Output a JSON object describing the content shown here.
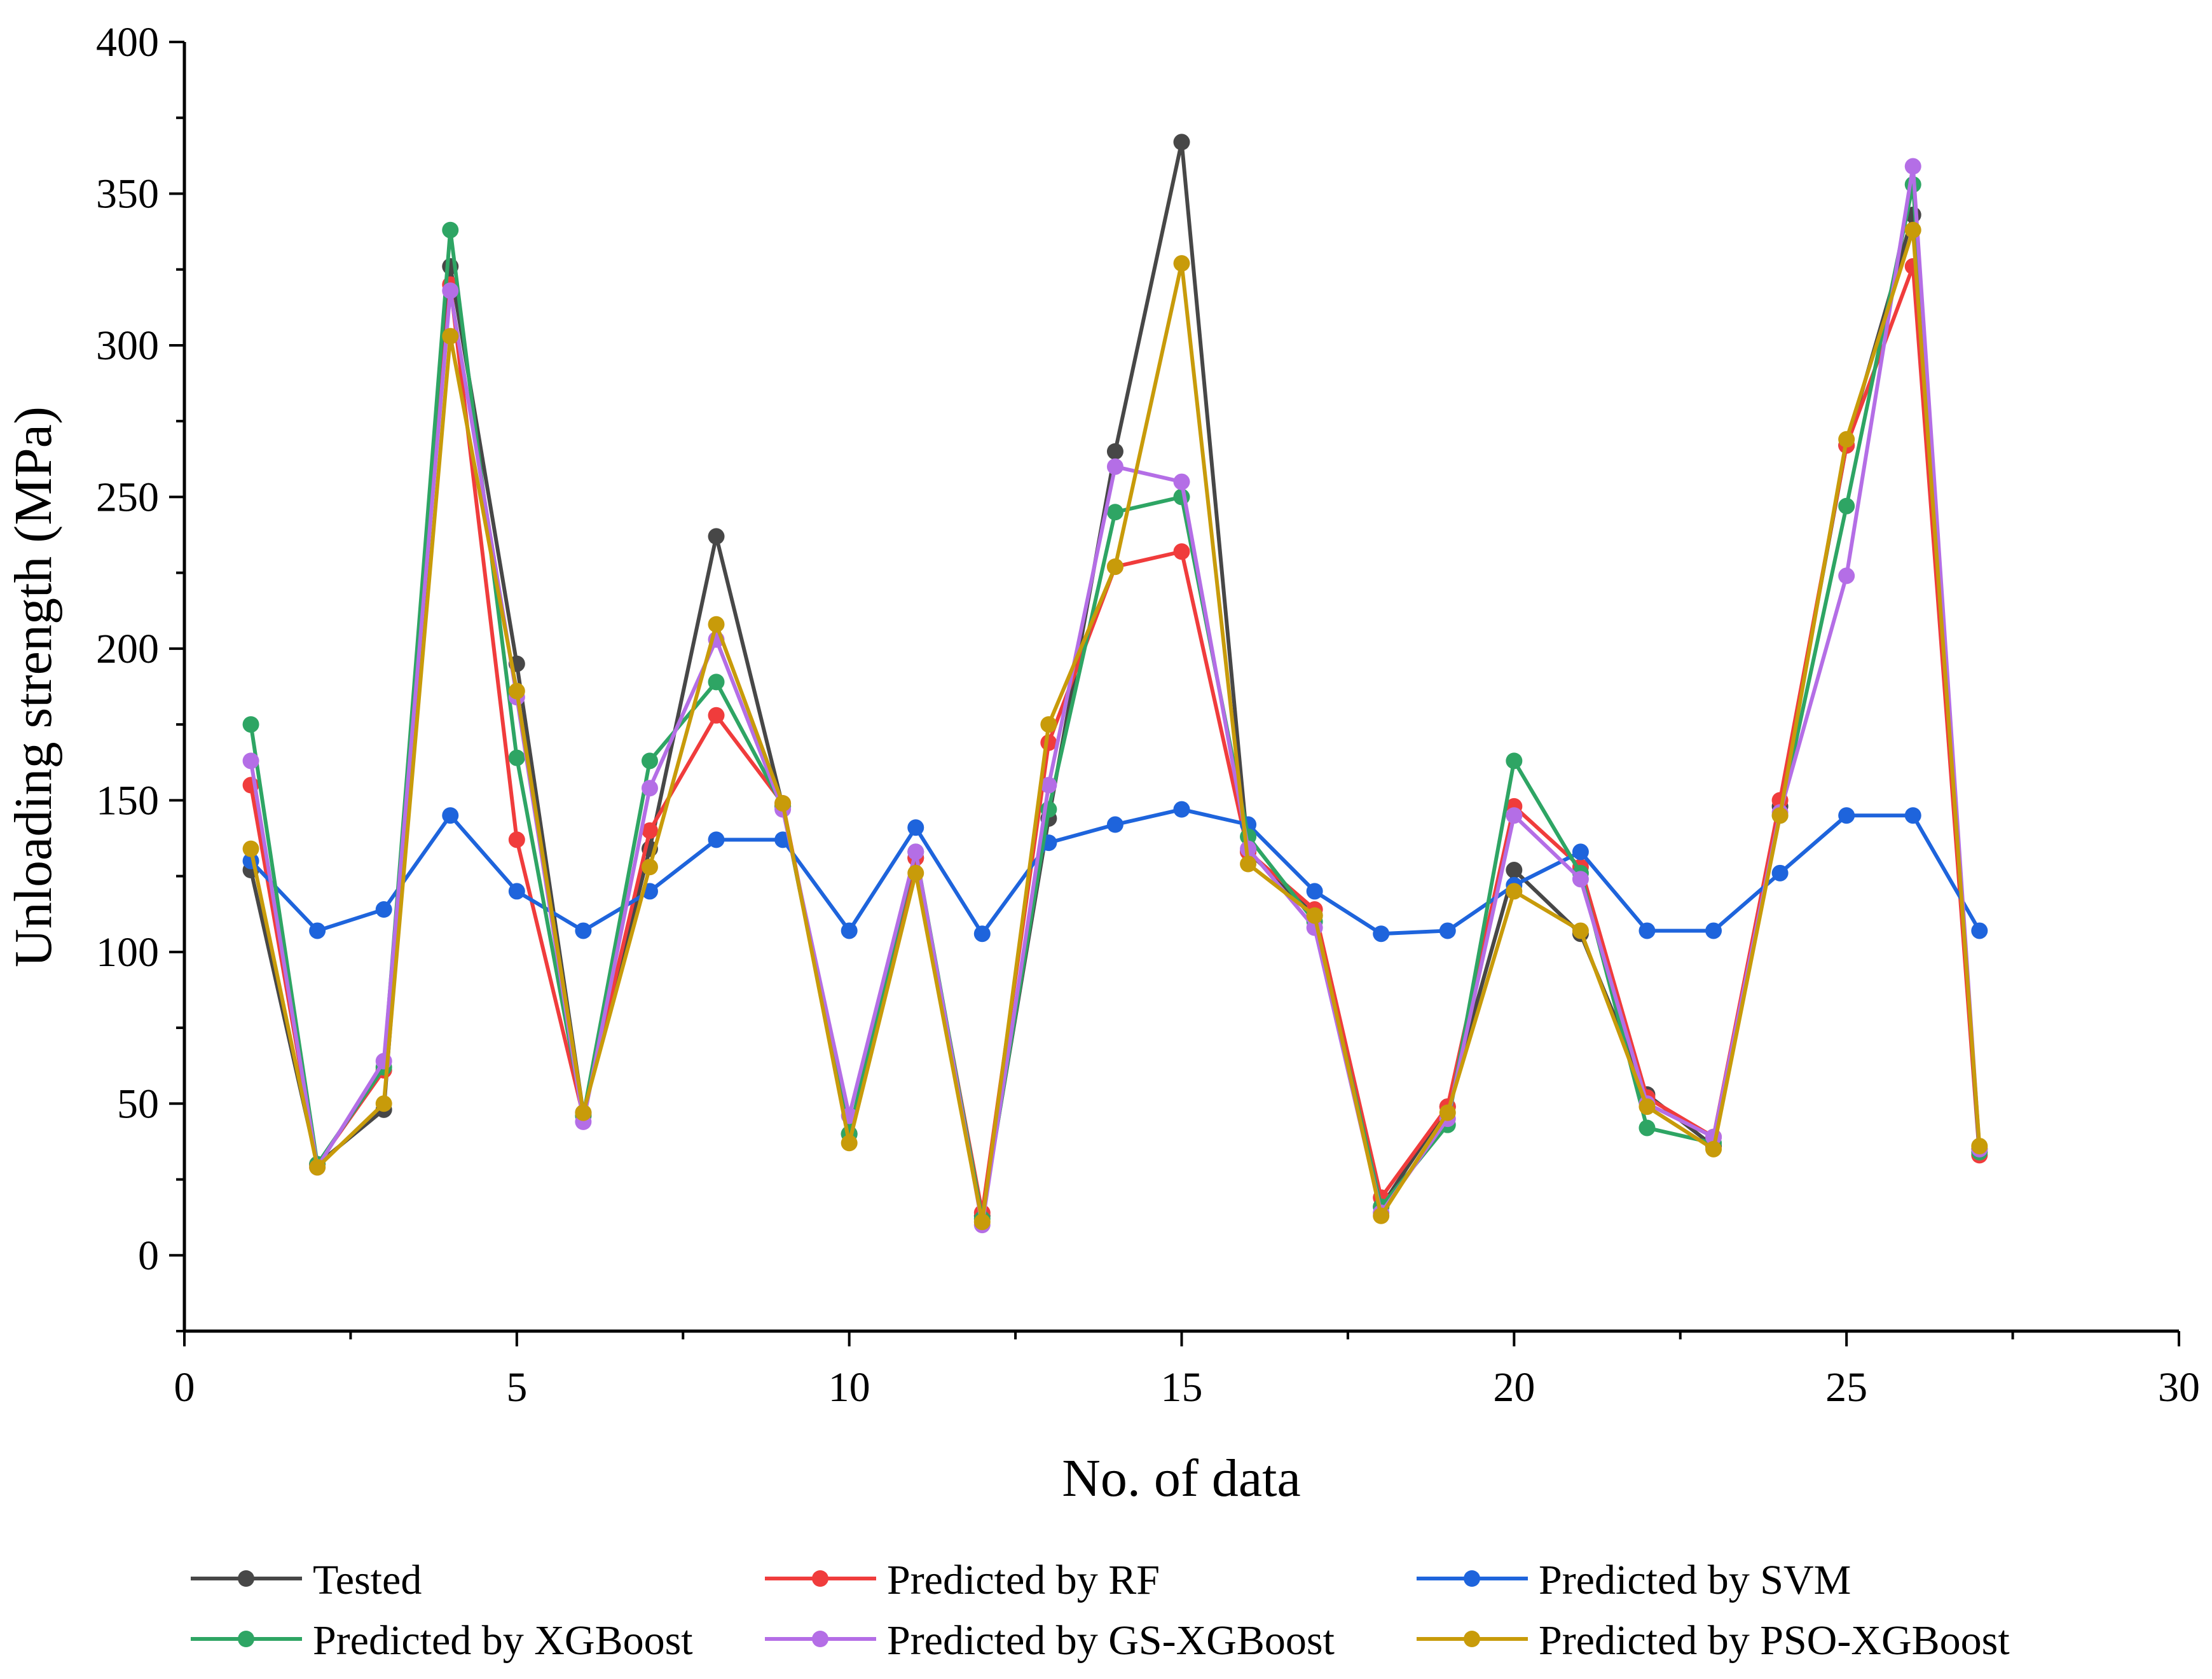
{
  "chart_data": {
    "type": "line",
    "title": "",
    "xlabel": "No. of data",
    "ylabel": "Unloading strength (MPa)",
    "xlim": [
      0,
      30
    ],
    "ylim": [
      -25,
      400
    ],
    "x_ticks": [
      0,
      5,
      10,
      15,
      20,
      25,
      30
    ],
    "y_ticks": [
      0,
      50,
      100,
      150,
      200,
      250,
      300,
      350,
      400
    ],
    "x_tick_labels": [
      "0",
      "5",
      "10",
      "15",
      "20",
      "25",
      "30"
    ],
    "y_tick_labels": [
      "0",
      "50",
      "100",
      "150",
      "200",
      "250",
      "300",
      "350",
      "400"
    ],
    "grid": false,
    "legend_position": "bottom",
    "x": [
      1,
      2,
      3,
      4,
      5,
      6,
      7,
      8,
      9,
      10,
      11,
      12,
      13,
      14,
      15,
      16,
      17,
      18,
      19,
      20,
      21,
      22,
      23,
      24,
      25,
      26,
      27
    ],
    "series": [
      {
        "name": "Tested",
        "color": "#474747",
        "values": [
          127,
          30,
          48,
          326,
          195,
          47,
          134,
          237,
          148,
          40,
          131,
          13,
          144,
          265,
          367,
          133,
          112,
          16,
          49,
          127,
          106,
          53,
          36,
          148,
          267,
          343,
          35
        ]
      },
      {
        "name": "Predicted by RF",
        "color": "#f03c3c",
        "values": [
          155,
          30,
          61,
          320,
          137,
          46,
          140,
          178,
          149,
          40,
          131,
          14,
          169,
          227,
          232,
          133,
          114,
          19,
          49,
          148,
          128,
          52,
          39,
          150,
          267,
          326,
          33
        ]
      },
      {
        "name": "Predicted by SVM",
        "color": "#1e64dc",
        "values": [
          130,
          107,
          114,
          145,
          120,
          107,
          120,
          137,
          137,
          107,
          141,
          106,
          136,
          142,
          147,
          142,
          120,
          106,
          107,
          122,
          133,
          107,
          107,
          126,
          145,
          145,
          107
        ]
      },
      {
        "name": "Predicted by XGBoost",
        "color": "#2ea564",
        "values": [
          175,
          30,
          62,
          338,
          164,
          46,
          163,
          189,
          148,
          40,
          133,
          12,
          147,
          245,
          250,
          138,
          110,
          16,
          43,
          163,
          126,
          42,
          37,
          145,
          247,
          353,
          34
        ]
      },
      {
        "name": "Predicted by GS-XGBoost",
        "color": "#b46ee6",
        "values": [
          163,
          29,
          64,
          318,
          184,
          44,
          154,
          203,
          147,
          46,
          133,
          10,
          155,
          260,
          255,
          134,
          108,
          14,
          45,
          145,
          124,
          50,
          39,
          146,
          224,
          359,
          35
        ]
      },
      {
        "name": "Predicted by PSO-XGBoost",
        "color": "#c89b0a",
        "values": [
          134,
          29,
          50,
          303,
          186,
          47,
          128,
          208,
          149,
          37,
          126,
          11,
          175,
          227,
          327,
          129,
          112,
          13,
          47,
          120,
          107,
          49,
          35,
          145,
          269,
          338,
          36
        ]
      }
    ]
  }
}
